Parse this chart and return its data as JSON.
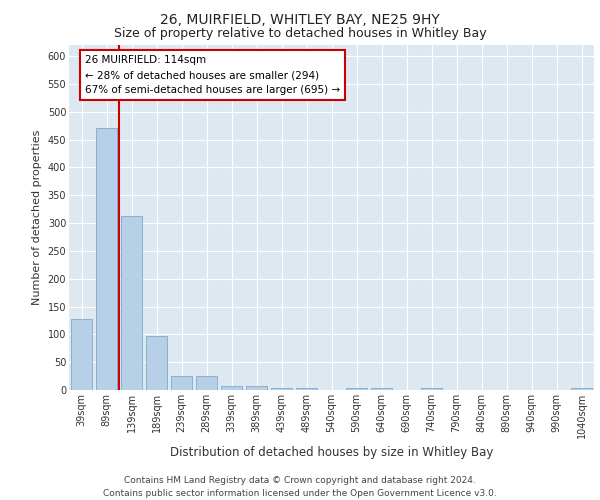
{
  "title1": "26, MUIRFIELD, WHITLEY BAY, NE25 9HY",
  "title2": "Size of property relative to detached houses in Whitley Bay",
  "xlabel": "Distribution of detached houses by size in Whitley Bay",
  "ylabel": "Number of detached properties",
  "categories": [
    "39sqm",
    "89sqm",
    "139sqm",
    "189sqm",
    "239sqm",
    "289sqm",
    "339sqm",
    "389sqm",
    "439sqm",
    "489sqm",
    "540sqm",
    "590sqm",
    "640sqm",
    "690sqm",
    "740sqm",
    "790sqm",
    "840sqm",
    "890sqm",
    "940sqm",
    "990sqm",
    "1040sqm"
  ],
  "values": [
    128,
    470,
    312,
    97,
    25,
    25,
    8,
    7,
    4,
    4,
    0,
    4,
    4,
    0,
    4,
    0,
    0,
    0,
    0,
    0,
    4
  ],
  "bar_color": "#b8cfe8",
  "bar_edge_color": "#7aaad0",
  "vline_x": 1.5,
  "vline_color": "#cc0000",
  "annotation_text": "26 MUIRFIELD: 114sqm\n← 28% of detached houses are smaller (294)\n67% of semi-detached houses are larger (695) →",
  "annotation_box_color": "#ffffff",
  "annotation_box_edge": "#cc0000",
  "ylim": [
    0,
    620
  ],
  "yticks": [
    0,
    50,
    100,
    150,
    200,
    250,
    300,
    350,
    400,
    450,
    500,
    550,
    600
  ],
  "background_color": "#dde8f0",
  "footer_text": "Contains HM Land Registry data © Crown copyright and database right 2024.\nContains public sector information licensed under the Open Government Licence v3.0.",
  "title1_fontsize": 10,
  "title2_fontsize": 9,
  "annotation_fontsize": 7.5,
  "xlabel_fontsize": 8.5,
  "ylabel_fontsize": 8,
  "footer_fontsize": 6.5,
  "tick_fontsize": 7
}
